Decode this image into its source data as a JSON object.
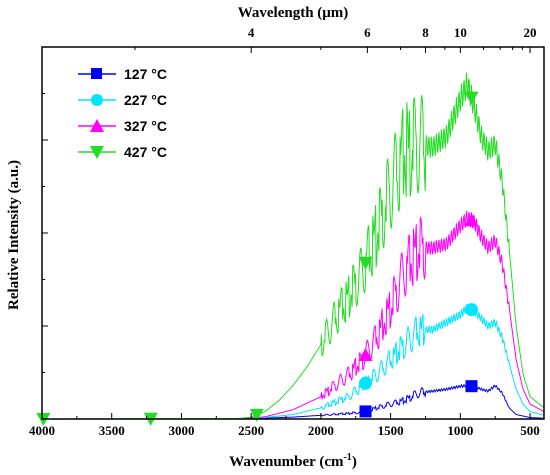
{
  "chart_data": {
    "type": "line",
    "xlabel_base": "Wavenumber (cm",
    "xlabel_sup": "-1",
    "xlabel_end": ")",
    "ylabel": "Relative Intensity (a.u.)",
    "top_label": "Wavelength (μm)",
    "xlim": [
      4000,
      400
    ],
    "ylim": [
      0,
      1.0
    ],
    "x_ticks": [
      4000,
      3500,
      3000,
      2500,
      2000,
      1500,
      1000,
      500
    ],
    "top_ticks": [
      {
        "label": "4",
        "um": 4
      },
      {
        "label": "6",
        "um": 6
      },
      {
        "label": "8",
        "um": 8
      },
      {
        "label": "10",
        "um": 10
      },
      {
        "label": "20",
        "um": 20
      }
    ],
    "series": [
      {
        "name": "127 °C",
        "color": "#0000ff",
        "marker": "square",
        "markers_x": [
          1680,
          920
        ],
        "points": [
          [
            4000,
            0.0
          ],
          [
            2600,
            0.0
          ],
          [
            2200,
            0.005
          ],
          [
            2000,
            0.01
          ],
          [
            1800,
            0.015
          ],
          [
            1700,
            0.018
          ],
          [
            1600,
            0.03
          ],
          [
            1500,
            0.04
          ],
          [
            1400,
            0.05
          ],
          [
            1300,
            0.07
          ],
          [
            1200,
            0.075
          ],
          [
            1100,
            0.08
          ],
          [
            1000,
            0.088
          ],
          [
            950,
            0.09
          ],
          [
            900,
            0.087
          ],
          [
            850,
            0.08
          ],
          [
            800,
            0.075
          ],
          [
            750,
            0.09
          ],
          [
            700,
            0.07
          ],
          [
            650,
            0.03
          ],
          [
            600,
            0.012
          ],
          [
            500,
            0.004
          ],
          [
            400,
            0.002
          ]
        ]
      },
      {
        "name": "227 °C",
        "color": "#00e5ff",
        "marker": "circle",
        "markers_x": [
          1680,
          920
        ],
        "points": [
          [
            4000,
            0.0
          ],
          [
            2600,
            0.0
          ],
          [
            2400,
            0.004
          ],
          [
            2200,
            0.012
          ],
          [
            2000,
            0.03
          ],
          [
            1900,
            0.045
          ],
          [
            1800,
            0.06
          ],
          [
            1700,
            0.09
          ],
          [
            1600,
            0.12
          ],
          [
            1500,
            0.16
          ],
          [
            1400,
            0.2
          ],
          [
            1300,
            0.24
          ],
          [
            1200,
            0.24
          ],
          [
            1100,
            0.26
          ],
          [
            1000,
            0.28
          ],
          [
            950,
            0.3
          ],
          [
            900,
            0.29
          ],
          [
            850,
            0.27
          ],
          [
            800,
            0.25
          ],
          [
            750,
            0.26
          ],
          [
            700,
            0.22
          ],
          [
            650,
            0.15
          ],
          [
            600,
            0.08
          ],
          [
            550,
            0.04
          ],
          [
            500,
            0.02
          ],
          [
            400,
            0.01
          ]
        ]
      },
      {
        "name": "327 °C",
        "color": "#ff00ff",
        "marker": "triangle-up",
        "markers_x": [
          1680,
          920
        ],
        "points": [
          [
            4000,
            0.0
          ],
          [
            2600,
            0.0
          ],
          [
            2400,
            0.006
          ],
          [
            2200,
            0.025
          ],
          [
            2000,
            0.06
          ],
          [
            1900,
            0.09
          ],
          [
            1800,
            0.12
          ],
          [
            1700,
            0.16
          ],
          [
            1600,
            0.22
          ],
          [
            1500,
            0.3
          ],
          [
            1400,
            0.4
          ],
          [
            1300,
            0.46
          ],
          [
            1200,
            0.46
          ],
          [
            1100,
            0.47
          ],
          [
            1000,
            0.52
          ],
          [
            950,
            0.54
          ],
          [
            900,
            0.53
          ],
          [
            850,
            0.49
          ],
          [
            800,
            0.46
          ],
          [
            750,
            0.48
          ],
          [
            700,
            0.42
          ],
          [
            650,
            0.3
          ],
          [
            600,
            0.16
          ],
          [
            550,
            0.08
          ],
          [
            500,
            0.04
          ],
          [
            400,
            0.02
          ]
        ]
      },
      {
        "name": "427 °C",
        "color": "#22dd22",
        "marker": "triangle-down",
        "markers_x": [
          3990,
          3220,
          2460,
          1680,
          920
        ],
        "points": [
          [
            4000,
            0.0
          ],
          [
            2600,
            0.001
          ],
          [
            2500,
            0.005
          ],
          [
            2400,
            0.02
          ],
          [
            2300,
            0.05
          ],
          [
            2200,
            0.09
          ],
          [
            2100,
            0.14
          ],
          [
            2000,
            0.2
          ],
          [
            1900,
            0.27
          ],
          [
            1800,
            0.33
          ],
          [
            1700,
            0.4
          ],
          [
            1600,
            0.5
          ],
          [
            1500,
            0.62
          ],
          [
            1400,
            0.72
          ],
          [
            1300,
            0.74
          ],
          [
            1200,
            0.73
          ],
          [
            1100,
            0.76
          ],
          [
            1000,
            0.86
          ],
          [
            950,
            0.9
          ],
          [
            900,
            0.84
          ],
          [
            850,
            0.76
          ],
          [
            800,
            0.72
          ],
          [
            750,
            0.74
          ],
          [
            700,
            0.64
          ],
          [
            650,
            0.46
          ],
          [
            600,
            0.25
          ],
          [
            550,
            0.12
          ],
          [
            500,
            0.06
          ],
          [
            400,
            0.03
          ]
        ]
      }
    ],
    "legend_position": "top-left"
  }
}
